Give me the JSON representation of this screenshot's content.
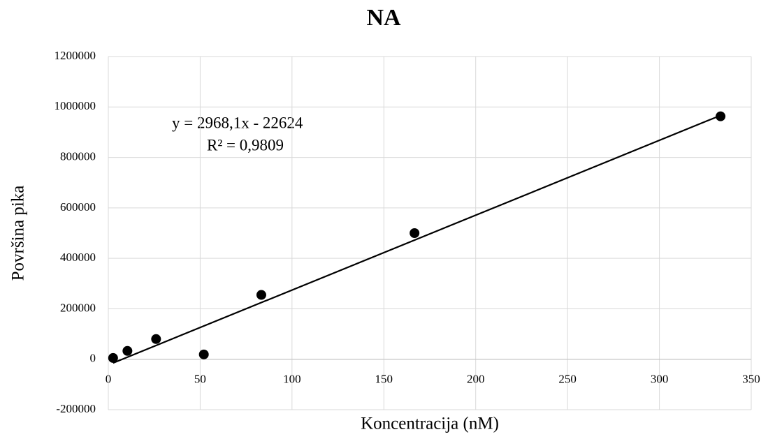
{
  "chart_data": {
    "type": "scatter",
    "title": "NA",
    "x_label": "Koncentracija (nM)",
    "y_label": "Površina pika",
    "series": [
      {
        "color": "#000000",
        "x": [
          2.6,
          10.4,
          26,
          52,
          83.3,
          166.7,
          333.3
        ],
        "values": [
          5000,
          33000,
          80000,
          19000,
          255000,
          500000,
          963000
        ]
      }
    ],
    "trendline": {
      "slope": 2968.1,
      "intercept": -22624,
      "color": "#000000",
      "equation": "y = 2968,1x - 22624",
      "r2": "R² = 0,9809"
    },
    "xlim": [
      0,
      350
    ],
    "xticks": [
      0,
      50,
      100,
      150,
      200,
      250,
      300,
      350
    ],
    "ylim": [
      -200000,
      1200000
    ],
    "yticks": [
      -200000,
      0,
      200000,
      400000,
      600000,
      800000,
      1000000,
      1200000
    ],
    "grid": true
  }
}
